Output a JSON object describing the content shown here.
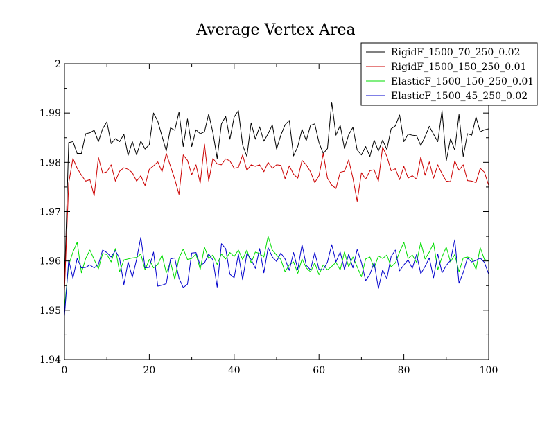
{
  "chart_data": {
    "type": "line",
    "title": "Average Vertex Area",
    "xlabel": "",
    "ylabel": "",
    "xlim": [
      0,
      100
    ],
    "ylim": [
      1.94,
      2.0
    ],
    "x_ticks": [
      0,
      20,
      40,
      60,
      80,
      100
    ],
    "x_tick_labels": [
      "0",
      "20",
      "40",
      "60",
      "80",
      "100"
    ],
    "y_ticks": [
      1.94,
      1.95,
      1.96,
      1.97,
      1.98,
      1.99,
      2.0
    ],
    "y_tick_labels": [
      "1.94",
      "1.95",
      "1.96",
      "1.97",
      "1.98",
      "1.99",
      "2"
    ],
    "grid": false,
    "legend_position": "top-right",
    "series": [
      {
        "name": "RigidF_1500_70_250_0.02",
        "color": "#000000",
        "x": [
          0,
          1,
          2,
          3,
          4,
          5,
          6,
          7,
          8,
          9,
          10,
          11,
          12,
          13,
          14,
          15,
          16,
          17,
          18,
          19,
          20,
          21,
          22,
          23,
          24,
          25,
          26,
          27,
          28,
          29,
          30,
          31,
          32,
          33,
          34,
          35,
          36,
          37,
          38,
          39,
          40,
          41,
          42,
          43,
          44,
          45,
          46,
          47,
          48,
          49,
          50,
          51,
          52,
          53,
          54,
          55,
          56,
          57,
          58,
          59,
          60,
          61,
          62,
          63,
          64,
          65,
          66,
          67,
          68,
          69,
          70,
          71,
          72,
          73,
          74,
          75,
          76,
          77,
          78,
          79,
          80,
          81,
          82,
          83,
          84,
          85,
          86,
          87,
          88,
          89,
          90,
          91,
          92,
          93,
          94,
          95,
          96,
          97,
          98,
          99,
          100
        ],
        "values": [
          1.955,
          1.984,
          1.9842,
          1.9818,
          1.9818,
          1.9858,
          1.986,
          1.9865,
          1.9842,
          1.9868,
          1.9882,
          1.9838,
          1.9848,
          1.9842,
          1.9857,
          1.9814,
          1.9842,
          1.9815,
          1.9843,
          1.9827,
          1.9836,
          1.99,
          1.9883,
          1.9853,
          1.9823,
          1.987,
          1.9865,
          1.9902,
          1.9832,
          1.9888,
          1.9832,
          1.9866,
          1.9858,
          1.9862,
          1.9898,
          1.986,
          1.9808,
          1.9878,
          1.9893,
          1.9847,
          1.9892,
          1.9905,
          1.9835,
          1.9812,
          1.988,
          1.9847,
          1.9872,
          1.9843,
          1.9858,
          1.9876,
          1.9827,
          1.9855,
          1.9876,
          1.9885,
          1.9813,
          1.9832,
          1.9867,
          1.9844,
          1.9875,
          1.9878,
          1.984,
          1.9818,
          1.9828,
          1.9922,
          1.9855,
          1.9875,
          1.9828,
          1.9856,
          1.9871,
          1.9825,
          1.9815,
          1.9832,
          1.9812,
          1.9845,
          1.9823,
          1.9845,
          1.9826,
          1.9868,
          1.9874,
          1.9896,
          1.9842,
          1.9857,
          1.9855,
          1.9854,
          1.9834,
          1.9852,
          1.9873,
          1.9857,
          1.9842,
          1.9905,
          1.9803,
          1.9848,
          1.9825,
          1.9897,
          1.9812,
          1.9858,
          1.9855,
          1.9892,
          1.9862,
          1.9866,
          1.9868
        ]
      },
      {
        "name": "RigidF_1500_150_250_0.01",
        "color": "#cc0000",
        "x": [
          0,
          1,
          2,
          3,
          4,
          5,
          6,
          7,
          8,
          9,
          10,
          11,
          12,
          13,
          14,
          15,
          16,
          17,
          18,
          19,
          20,
          21,
          22,
          23,
          24,
          25,
          26,
          27,
          28,
          29,
          30,
          31,
          32,
          33,
          34,
          35,
          36,
          37,
          38,
          39,
          40,
          41,
          42,
          43,
          44,
          45,
          46,
          47,
          48,
          49,
          50,
          51,
          52,
          53,
          54,
          55,
          56,
          57,
          58,
          59,
          60,
          61,
          62,
          63,
          64,
          65,
          66,
          67,
          68,
          69,
          70,
          71,
          72,
          73,
          74,
          75,
          76,
          77,
          78,
          79,
          80,
          81,
          82,
          83,
          84,
          85,
          86,
          87,
          88,
          89,
          90,
          91,
          92,
          93,
          94,
          95,
          96,
          97,
          98,
          99,
          100
        ],
        "values": [
          1.954,
          1.9758,
          1.9808,
          1.9788,
          1.9774,
          1.9762,
          1.9765,
          1.9732,
          1.981,
          1.9778,
          1.9781,
          1.9795,
          1.9762,
          1.9782,
          1.9789,
          1.9786,
          1.9779,
          1.9762,
          1.9773,
          1.9753,
          1.9786,
          1.9793,
          1.9801,
          1.9781,
          1.9818,
          1.9792,
          1.9766,
          1.9735,
          1.9815,
          1.9804,
          1.9775,
          1.9795,
          1.9758,
          1.9837,
          1.9762,
          1.9808,
          1.9797,
          1.9795,
          1.9807,
          1.9803,
          1.9788,
          1.979,
          1.9815,
          1.9784,
          1.9795,
          1.9792,
          1.9795,
          1.9781,
          1.98,
          1.9788,
          1.9795,
          1.9794,
          1.9767,
          1.9793,
          1.9776,
          1.9768,
          1.9804,
          1.9795,
          1.9781,
          1.9759,
          1.9773,
          1.9818,
          1.9768,
          1.9754,
          1.9747,
          1.978,
          1.9782,
          1.9805,
          1.9768,
          1.9721,
          1.9779,
          1.9766,
          1.9783,
          1.9785,
          1.9762,
          1.9831,
          1.9812,
          1.9783,
          1.9787,
          1.9765,
          1.9792,
          1.9768,
          1.9773,
          1.9766,
          1.9811,
          1.9774,
          1.9801,
          1.9768,
          1.9795,
          1.9777,
          1.9762,
          1.9761,
          1.9803,
          1.9784,
          1.9795,
          1.9763,
          1.9762,
          1.9759,
          1.9788,
          1.978,
          1.9753
        ]
      },
      {
        "name": "ElasticF_1500_150_250_0.01",
        "color": "#00dd00",
        "x": [
          0,
          1,
          2,
          3,
          4,
          5,
          6,
          7,
          8,
          9,
          10,
          11,
          12,
          13,
          14,
          15,
          16,
          17,
          18,
          19,
          20,
          21,
          22,
          23,
          24,
          25,
          26,
          27,
          28,
          29,
          30,
          31,
          32,
          33,
          34,
          35,
          36,
          37,
          38,
          39,
          40,
          41,
          42,
          43,
          44,
          45,
          46,
          47,
          48,
          49,
          50,
          51,
          52,
          53,
          54,
          55,
          56,
          57,
          58,
          59,
          60,
          61,
          62,
          63,
          64,
          65,
          66,
          67,
          68,
          69,
          70,
          71,
          72,
          73,
          74,
          75,
          76,
          77,
          78,
          79,
          80,
          81,
          82,
          83,
          84,
          85,
          86,
          87,
          88,
          89,
          90,
          91,
          92,
          93,
          94,
          95,
          96,
          97,
          98,
          99,
          100
        ],
        "values": [
          1.9505,
          1.9592,
          1.9618,
          1.9638,
          1.9576,
          1.9605,
          1.9622,
          1.9603,
          1.9584,
          1.9615,
          1.9613,
          1.9598,
          1.9625,
          1.9578,
          1.9602,
          1.9604,
          1.9606,
          1.9607,
          1.9614,
          1.9582,
          1.9603,
          1.9586,
          1.9593,
          1.9612,
          1.9576,
          1.9598,
          1.9563,
          1.9606,
          1.9624,
          1.9603,
          1.9605,
          1.9614,
          1.9583,
          1.9628,
          1.9605,
          1.9612,
          1.9593,
          1.9614,
          1.9604,
          1.9617,
          1.9609,
          1.9622,
          1.9603,
          1.9622,
          1.9596,
          1.9618,
          1.9615,
          1.9608,
          1.965,
          1.9622,
          1.9612,
          1.9603,
          1.9578,
          1.9592,
          1.9598,
          1.9575,
          1.9604,
          1.9586,
          1.9578,
          1.9596,
          1.9572,
          1.9592,
          1.9582,
          1.9589,
          1.9597,
          1.9582,
          1.9618,
          1.9588,
          1.9608,
          1.9588,
          1.9568,
          1.9604,
          1.9608,
          1.9586,
          1.961,
          1.9605,
          1.9612,
          1.9588,
          1.9596,
          1.9618,
          1.9638,
          1.9605,
          1.9612,
          1.9597,
          1.9638,
          1.9604,
          1.9618,
          1.9636,
          1.9582,
          1.9608,
          1.9628,
          1.9598,
          1.9613,
          1.9578,
          1.9606,
          1.9608,
          1.9605,
          1.9583,
          1.9627,
          1.9603,
          1.96
        ]
      },
      {
        "name": "ElasticF_1500_45_250_0.02",
        "color": "#0000cc",
        "x": [
          0,
          1,
          2,
          3,
          4,
          5,
          6,
          7,
          8,
          9,
          10,
          11,
          12,
          13,
          14,
          15,
          16,
          17,
          18,
          19,
          20,
          21,
          22,
          23,
          24,
          25,
          26,
          27,
          28,
          29,
          30,
          31,
          32,
          33,
          34,
          35,
          36,
          37,
          38,
          39,
          40,
          41,
          42,
          43,
          44,
          45,
          46,
          47,
          48,
          49,
          50,
          51,
          52,
          53,
          54,
          55,
          56,
          57,
          58,
          59,
          60,
          61,
          62,
          63,
          64,
          65,
          66,
          67,
          68,
          69,
          70,
          71,
          72,
          73,
          74,
          75,
          76,
          77,
          78,
          79,
          80,
          81,
          82,
          83,
          84,
          85,
          86,
          87,
          88,
          89,
          90,
          91,
          92,
          93,
          94,
          95,
          96,
          97,
          98,
          99,
          100
        ],
        "values": [
          1.9488,
          1.9602,
          1.9565,
          1.9605,
          1.9586,
          1.9587,
          1.9592,
          1.9586,
          1.9593,
          1.9622,
          1.9617,
          1.9608,
          1.9621,
          1.9605,
          1.9552,
          1.9598,
          1.9567,
          1.9603,
          1.9648,
          1.9586,
          1.9587,
          1.9618,
          1.9549,
          1.9551,
          1.9554,
          1.9604,
          1.9606,
          1.9565,
          1.9546,
          1.9553,
          1.9616,
          1.9617,
          1.9591,
          1.9596,
          1.9614,
          1.9602,
          1.9547,
          1.9635,
          1.9625,
          1.9573,
          1.9566,
          1.9614,
          1.9562,
          1.9615,
          1.9603,
          1.9585,
          1.9625,
          1.9576,
          1.9627,
          1.9608,
          1.9599,
          1.9616,
          1.9604,
          1.9581,
          1.9617,
          1.9583,
          1.9633,
          1.9591,
          1.9582,
          1.9617,
          1.9583,
          1.9582,
          1.9598,
          1.9633,
          1.9598,
          1.9618,
          1.9583,
          1.9614,
          1.9586,
          1.9623,
          1.9597,
          1.956,
          1.9573,
          1.9597,
          1.9544,
          1.9582,
          1.9564,
          1.9609,
          1.9622,
          1.958,
          1.9592,
          1.9602,
          1.9585,
          1.9613,
          1.9574,
          1.9589,
          1.9606,
          1.9566,
          1.9614,
          1.9576,
          1.9591,
          1.9601,
          1.9643,
          1.9555,
          1.9577,
          1.9606,
          1.9598,
          1.9601,
          1.9606,
          1.9597,
          1.9573
        ]
      }
    ]
  }
}
